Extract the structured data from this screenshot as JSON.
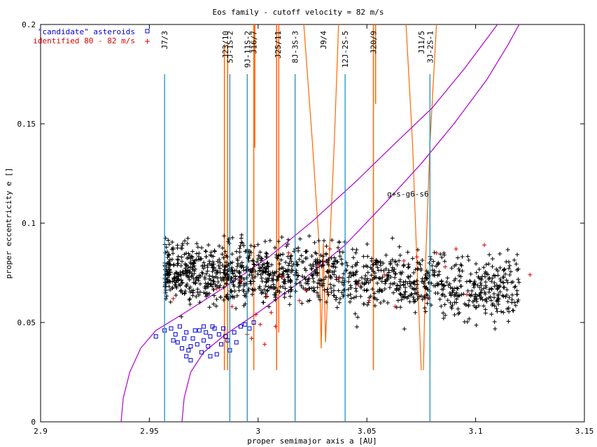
{
  "chart_data": {
    "type": "scatter",
    "title": "Eos family - cutoff velocity = 82 m/s",
    "xlabel": "proper semimajor axis a [AU]",
    "ylabel": "proper eccentricity e []",
    "xlim": [
      2.9,
      3.15
    ],
    "ylim": [
      0,
      0.2
    ],
    "x_ticks": [
      "2.9",
      "2.95",
      "3",
      "3.05",
      "3.1",
      "3.15"
    ],
    "y_ticks": [
      "0",
      "0.05",
      "0.1",
      "0.15",
      "0.2"
    ],
    "legend_position": "top-left",
    "series": [
      {
        "name": "\"candidate\" asteroids",
        "marker": "square",
        "color": "#0000dd",
        "points": [
          [
            2.953,
            0.043
          ],
          [
            2.957,
            0.046
          ],
          [
            2.96,
            0.047
          ],
          [
            2.962,
            0.044
          ],
          [
            2.963,
            0.04
          ],
          [
            2.965,
            0.037
          ],
          [
            2.967,
            0.033
          ],
          [
            2.968,
            0.036
          ],
          [
            2.969,
            0.031
          ],
          [
            2.97,
            0.042
          ],
          [
            2.972,
            0.039
          ],
          [
            2.973,
            0.046
          ],
          [
            2.974,
            0.035
          ],
          [
            2.975,
            0.041
          ],
          [
            2.976,
            0.045
          ],
          [
            2.977,
            0.038
          ],
          [
            2.978,
            0.043
          ],
          [
            2.979,
            0.048
          ],
          [
            2.981,
            0.034
          ],
          [
            2.982,
            0.044
          ],
          [
            2.983,
            0.039
          ],
          [
            2.984,
            0.047
          ],
          [
            2.986,
            0.041
          ],
          [
            2.987,
            0.036
          ],
          [
            2.989,
            0.045
          ],
          [
            2.99,
            0.04
          ],
          [
            2.992,
            0.048
          ],
          [
            2.994,
            0.049
          ],
          [
            2.996,
            0.047
          ],
          [
            2.998,
            0.05
          ],
          [
            2.964,
            0.048
          ],
          [
            2.966,
            0.042
          ],
          [
            2.971,
            0.046
          ],
          [
            2.975,
            0.048
          ],
          [
            2.969,
            0.038
          ],
          [
            2.978,
            0.033
          ],
          [
            2.98,
            0.047
          ],
          [
            2.985,
            0.043
          ],
          [
            2.961,
            0.041
          ],
          [
            2.967,
            0.045
          ]
        ]
      },
      {
        "name": "identified 80 - 82 m/s",
        "marker": "plus",
        "color": "#dd0000",
        "points": [
          [
            2.961,
            0.062
          ],
          [
            2.988,
            0.058
          ],
          [
            2.992,
            0.071
          ],
          [
            2.995,
            0.044
          ],
          [
            2.999,
            0.054
          ],
          [
            3.001,
            0.049
          ],
          [
            3.004,
            0.063
          ],
          [
            3.008,
            0.048
          ],
          [
            3.011,
            0.073
          ],
          [
            3.014,
            0.085
          ],
          [
            3.019,
            0.061
          ],
          [
            3.028,
            0.079
          ],
          [
            3.033,
            0.087
          ],
          [
            3.037,
            0.072
          ],
          [
            3.046,
            0.069
          ],
          [
            3.058,
            0.074
          ],
          [
            3.067,
            0.081
          ],
          [
            3.073,
            0.083
          ],
          [
            3.078,
            0.062
          ],
          [
            3.082,
            0.085
          ],
          [
            3.086,
            0.078
          ],
          [
            3.091,
            0.087
          ],
          [
            3.096,
            0.064
          ],
          [
            3.104,
            0.089
          ],
          [
            3.125,
            0.074
          ],
          [
            2.981,
            0.067
          ],
          [
            2.997,
            0.042
          ],
          [
            3.003,
            0.039
          ],
          [
            3.006,
            0.055
          ],
          [
            3.022,
            0.066
          ],
          [
            3.051,
            0.061
          ],
          [
            3.063,
            0.058
          ]
        ]
      }
    ],
    "main_cloud": {
      "name": "",
      "marker": "plus",
      "color": "#000000",
      "n": 1400,
      "a_range": [
        2.957,
        3.12
      ],
      "e_center": 0.075,
      "e_spread": 0.011
    },
    "resonances": [
      {
        "label": "J7/3",
        "a": 2.957
      },
      {
        "label": "5J-1S-2",
        "a": 2.987
      },
      {
        "label": "9J-11S-2",
        "a": 2.995
      },
      {
        "label": "8J-3S-3",
        "a": 3.017
      },
      {
        "label": "12J-2S-5",
        "a": 3.04
      },
      {
        "label": "3J-2S-1",
        "a": 3.079
      }
    ],
    "mmr_labels": [
      {
        "label": "J23/10",
        "a": 2.985
      },
      {
        "label": "J16/7",
        "a": 2.998
      },
      {
        "label": "J25/11",
        "a": 3.009
      },
      {
        "label": "J9/4",
        "a": 3.03
      },
      {
        "label": "J20/9",
        "a": 3.053
      },
      {
        "label": "J11/5",
        "a": 3.075
      }
    ],
    "secular_label": "g+s-g6-s6",
    "colors": {
      "resonance": "#1f8fbf",
      "mmr": "#ff6600",
      "secular": "#b000d0",
      "axis": "#000000"
    }
  }
}
